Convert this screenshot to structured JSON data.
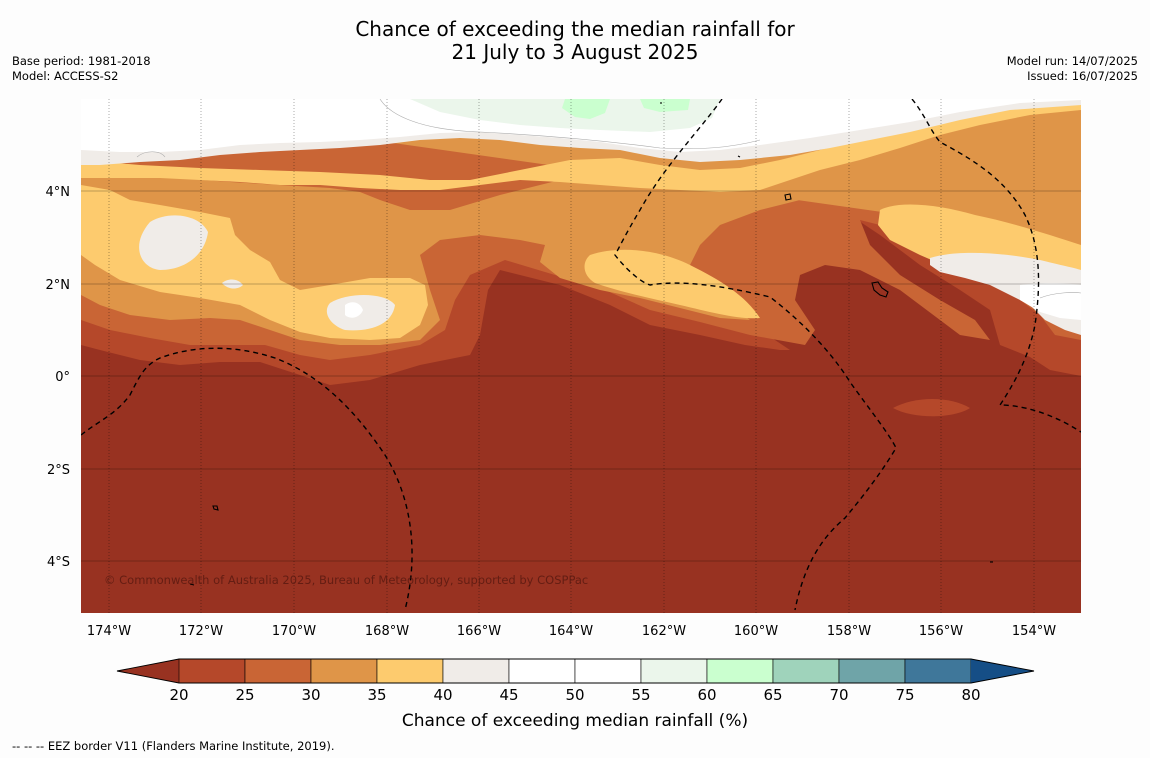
{
  "title": {
    "line1": "Chance of exceeding the median rainfall for",
    "line2": "21 July to 3 August 2025"
  },
  "meta_left": {
    "base_period": "Base period: 1981-2018",
    "model": "Model: ACCESS-S2"
  },
  "meta_right": {
    "model_run": "Model run: 14/07/2025",
    "issued": "Issued: 16/07/2025"
  },
  "map": {
    "lat_labels": [
      "4°N",
      "2°N",
      "0°",
      "2°S",
      "4°S"
    ],
    "lon_labels": [
      "174°W",
      "172°W",
      "170°W",
      "168°W",
      "166°W",
      "164°W",
      "162°W",
      "160°W",
      "158°W",
      "156°W",
      "154°W"
    ],
    "copyright": "© Commonwealth of Australia 2025, Bureau of Meteorology, supported by COSPPac"
  },
  "colorbar": {
    "ticks": [
      "20",
      "25",
      "30",
      "35",
      "40",
      "45",
      "50",
      "55",
      "60",
      "65",
      "70",
      "75",
      "80"
    ],
    "colors": [
      "#b5482a",
      "#c96535",
      "#df9548",
      "#fdcb6e",
      "#f0ece8",
      "#ffffff",
      "#ffffff",
      "#ebf6eb",
      "#caffcf",
      "#9fd3bb",
      "#6fa4a8",
      "#3f779a"
    ],
    "under_color": "#983221",
    "over_color": "#154e86",
    "label": "Chance of exceeding median rainfall (%)"
  },
  "footnote": "--  --  -- EEZ border V11 (Flanders Marine Institute, 2019)."
}
